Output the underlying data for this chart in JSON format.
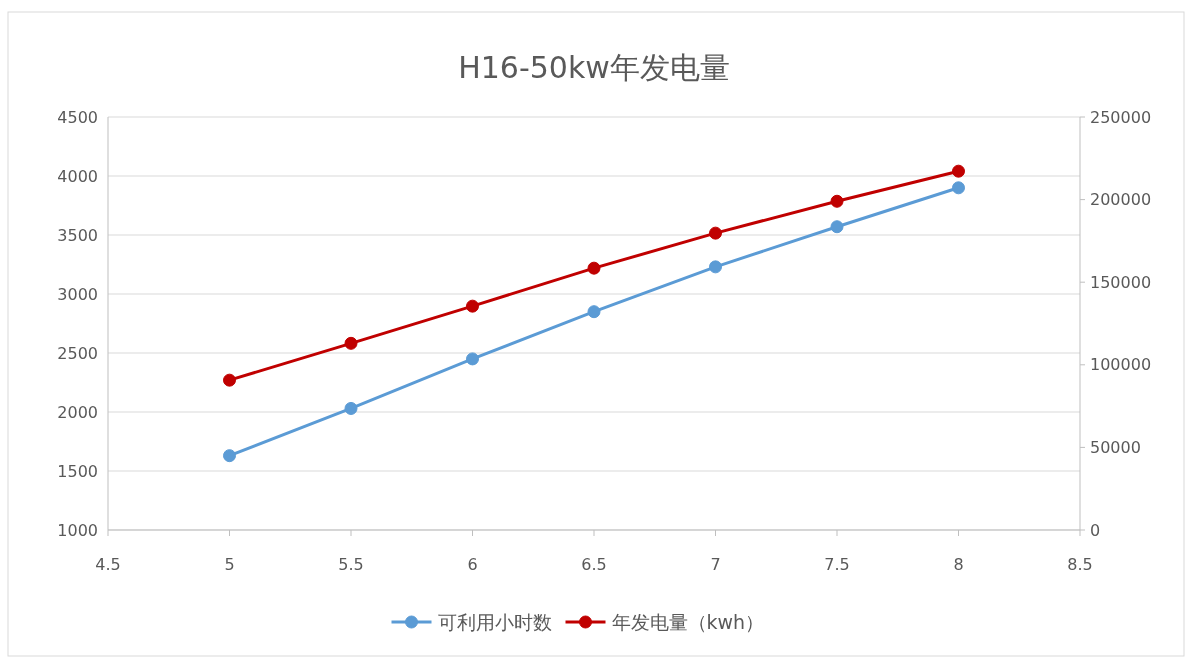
{
  "chart_data": {
    "type": "line",
    "title": "H16-50kw年发电量",
    "x": [
      5,
      5.5,
      6,
      6.5,
      7,
      7.5,
      8
    ],
    "series": [
      {
        "name": "可利用小时数",
        "color": "#5b9bd5",
        "values": [
          1630,
          2030,
          2450,
          2850,
          3230,
          3570,
          3900
        ]
      },
      {
        "name": "年发电量（kwh）",
        "color": "#c00000",
        "axis": "y2",
        "values": [
          90700,
          113000,
          135500,
          158500,
          179700,
          199000,
          217200
        ]
      }
    ],
    "xlim": [
      4.5,
      8.5
    ],
    "xticks": [
      4.5,
      5,
      5.5,
      6,
      6.5,
      7,
      7.5,
      8,
      8.5
    ],
    "ylim": [
      1000,
      4500
    ],
    "yticks": [
      1000,
      1500,
      2000,
      2500,
      3000,
      3500,
      4000,
      4500
    ],
    "y2lim": [
      0,
      250000
    ],
    "y2ticks": [
      0,
      50000,
      100000,
      150000,
      200000,
      250000
    ],
    "grid": "y",
    "legend": "bottom",
    "marker": "circle"
  }
}
